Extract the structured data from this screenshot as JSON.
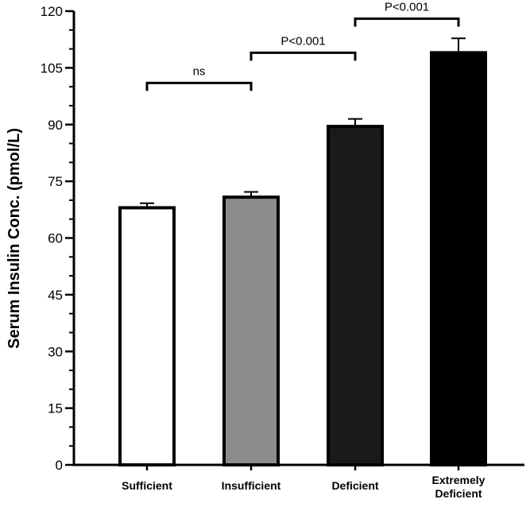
{
  "chart_data": {
    "type": "bar",
    "title": "",
    "xlabel": "",
    "ylabel": "Serum Insulin Conc. (pmol/L)",
    "ylim": [
      0,
      120
    ],
    "yticks": [
      0,
      15,
      30,
      45,
      60,
      75,
      90,
      105,
      120
    ],
    "yticks_minor_step": 5,
    "categories": [
      {
        "lines": [
          "Sufficient"
        ],
        "value": 68,
        "error": 1.2,
        "fill": "#ffffff"
      },
      {
        "lines": [
          "Insufficient"
        ],
        "value": 70.8,
        "error": 1.4,
        "fill": "#8c8c8c"
      },
      {
        "lines": [
          "Deficient"
        ],
        "value": 89.5,
        "error": 2.0,
        "fill": "#1a1a1a"
      },
      {
        "lines": [
          "Extremely",
          "Deficient"
        ],
        "value": 109,
        "error": 3.8,
        "fill": "#000000"
      }
    ],
    "comparisons": [
      {
        "from": 0,
        "to": 1,
        "label": "ns",
        "y": 101
      },
      {
        "from": 1,
        "to": 2,
        "label": "P<0.001",
        "y": 109
      },
      {
        "from": 2,
        "to": 3,
        "label": "P<0.001",
        "y": 118
      }
    ],
    "colors": {
      "axis": "#000000",
      "bar_edge": "#000000"
    }
  }
}
